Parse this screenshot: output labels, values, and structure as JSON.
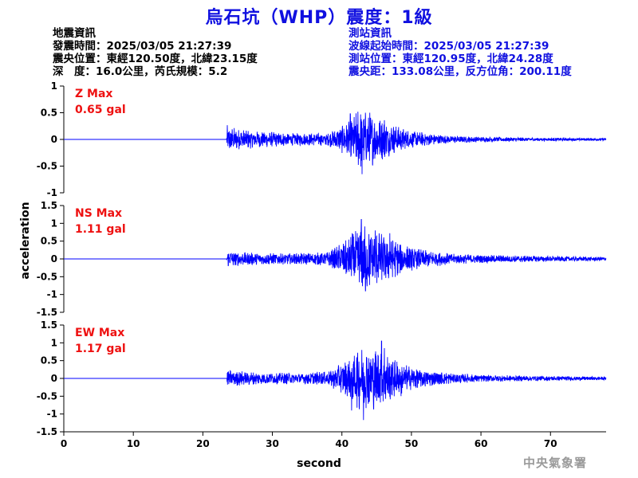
{
  "page": {
    "title": "烏石坑（WHP）震度：1級",
    "footer": "中央氣象署"
  },
  "event_info": {
    "heading": "地震資訊",
    "origin_time": "發震時間：2025/03/05 21:27:39",
    "epicenter": "震央位置：東經120.50度，北緯23.15度",
    "depth_magnitude": "深　度：16.0公里，芮氏規模：5.2"
  },
  "station_info": {
    "heading": "測站資訊",
    "wave_start": "波線起始時間：2025/03/05 21:27:39",
    "location": "測站位置：東經120.95度，北緯24.28度",
    "distance": "震央距：133.08公里，反方位角：200.11度"
  },
  "chart_data": {
    "type": "line",
    "xlabel": "second",
    "ylabel": "acceleration",
    "xlim": [
      0,
      78
    ],
    "xticks": [
      0,
      10,
      20,
      30,
      40,
      50,
      60,
      70
    ],
    "line_color": "#0000ff",
    "label_color": "#ee1111",
    "panels": [
      {
        "component": "Z",
        "label": "Z Max",
        "max_text": "0.65 gal",
        "ylim": [
          -1,
          1
        ],
        "yticks": [
          1,
          0.5,
          0,
          -0.5,
          -1
        ],
        "ytick_labels": [
          "1",
          "0.5",
          "0",
          "-0.5",
          "-1"
        ],
        "envelope": [
          [
            0,
            0
          ],
          [
            23.4,
            0
          ],
          [
            23.5,
            0.28
          ],
          [
            25,
            0.2
          ],
          [
            28,
            0.16
          ],
          [
            33,
            0.12
          ],
          [
            38,
            0.12
          ],
          [
            40.5,
            0.3
          ],
          [
            42.5,
            0.58
          ],
          [
            44,
            0.52
          ],
          [
            46,
            0.38
          ],
          [
            48,
            0.25
          ],
          [
            50,
            0.16
          ],
          [
            55,
            0.08
          ],
          [
            60,
            0.05
          ],
          [
            70,
            0.03
          ],
          [
            78,
            0.025
          ]
        ],
        "peaks": [
          [
            41.2,
            0.48
          ],
          [
            42.3,
            0.52
          ],
          [
            42.9,
            -0.65
          ],
          [
            44.0,
            0.5
          ],
          [
            46.1,
            0.36
          ]
        ]
      },
      {
        "component": "NS",
        "label": "NS Max",
        "max_text": "1.11 gal",
        "ylim": [
          -1.5,
          1.5
        ],
        "yticks": [
          1.5,
          1,
          0.5,
          0,
          -0.5,
          -1,
          -1.5
        ],
        "ytick_labels": [
          "1.5",
          "1",
          "0.5",
          "0",
          "-0.5",
          "-1",
          "-1.5"
        ],
        "envelope": [
          [
            0,
            0
          ],
          [
            23.4,
            0
          ],
          [
            23.5,
            0.25
          ],
          [
            25,
            0.2
          ],
          [
            28,
            0.18
          ],
          [
            33,
            0.16
          ],
          [
            38,
            0.2
          ],
          [
            41,
            0.6
          ],
          [
            43,
            1.0
          ],
          [
            45,
            0.8
          ],
          [
            47,
            0.62
          ],
          [
            49,
            0.4
          ],
          [
            52,
            0.25
          ],
          [
            56,
            0.15
          ],
          [
            60,
            0.12
          ],
          [
            70,
            0.08
          ],
          [
            78,
            0.06
          ]
        ],
        "peaks": [
          [
            41.5,
            0.72
          ],
          [
            42.8,
            1.11
          ],
          [
            43.4,
            -0.9
          ],
          [
            44.8,
            0.8
          ],
          [
            46.9,
            0.72
          ]
        ]
      },
      {
        "component": "EW",
        "label": "EW Max",
        "max_text": "1.17 gal",
        "ylim": [
          -1.5,
          1.5
        ],
        "yticks": [
          1.5,
          1,
          0.5,
          0,
          -0.5,
          -1,
          -1.5
        ],
        "ytick_labels": [
          "1.5",
          "1",
          "0.5",
          "0",
          "-0.5",
          "-1",
          "-1.5"
        ],
        "envelope": [
          [
            0,
            0
          ],
          [
            23.4,
            0
          ],
          [
            23.5,
            0.25
          ],
          [
            25,
            0.22
          ],
          [
            28,
            0.18
          ],
          [
            33,
            0.16
          ],
          [
            38,
            0.2
          ],
          [
            40.5,
            0.5
          ],
          [
            42.5,
            0.9
          ],
          [
            45,
            0.9
          ],
          [
            47,
            0.65
          ],
          [
            49,
            0.4
          ],
          [
            52,
            0.25
          ],
          [
            56,
            0.15
          ],
          [
            60,
            0.1
          ],
          [
            70,
            0.07
          ],
          [
            78,
            0.05
          ]
        ],
        "peaks": [
          [
            41.4,
            -0.9
          ],
          [
            43.1,
            -1.17
          ],
          [
            45.7,
            1.05
          ],
          [
            46.1,
            0.85
          ],
          [
            48.5,
            -0.5
          ]
        ]
      }
    ]
  }
}
